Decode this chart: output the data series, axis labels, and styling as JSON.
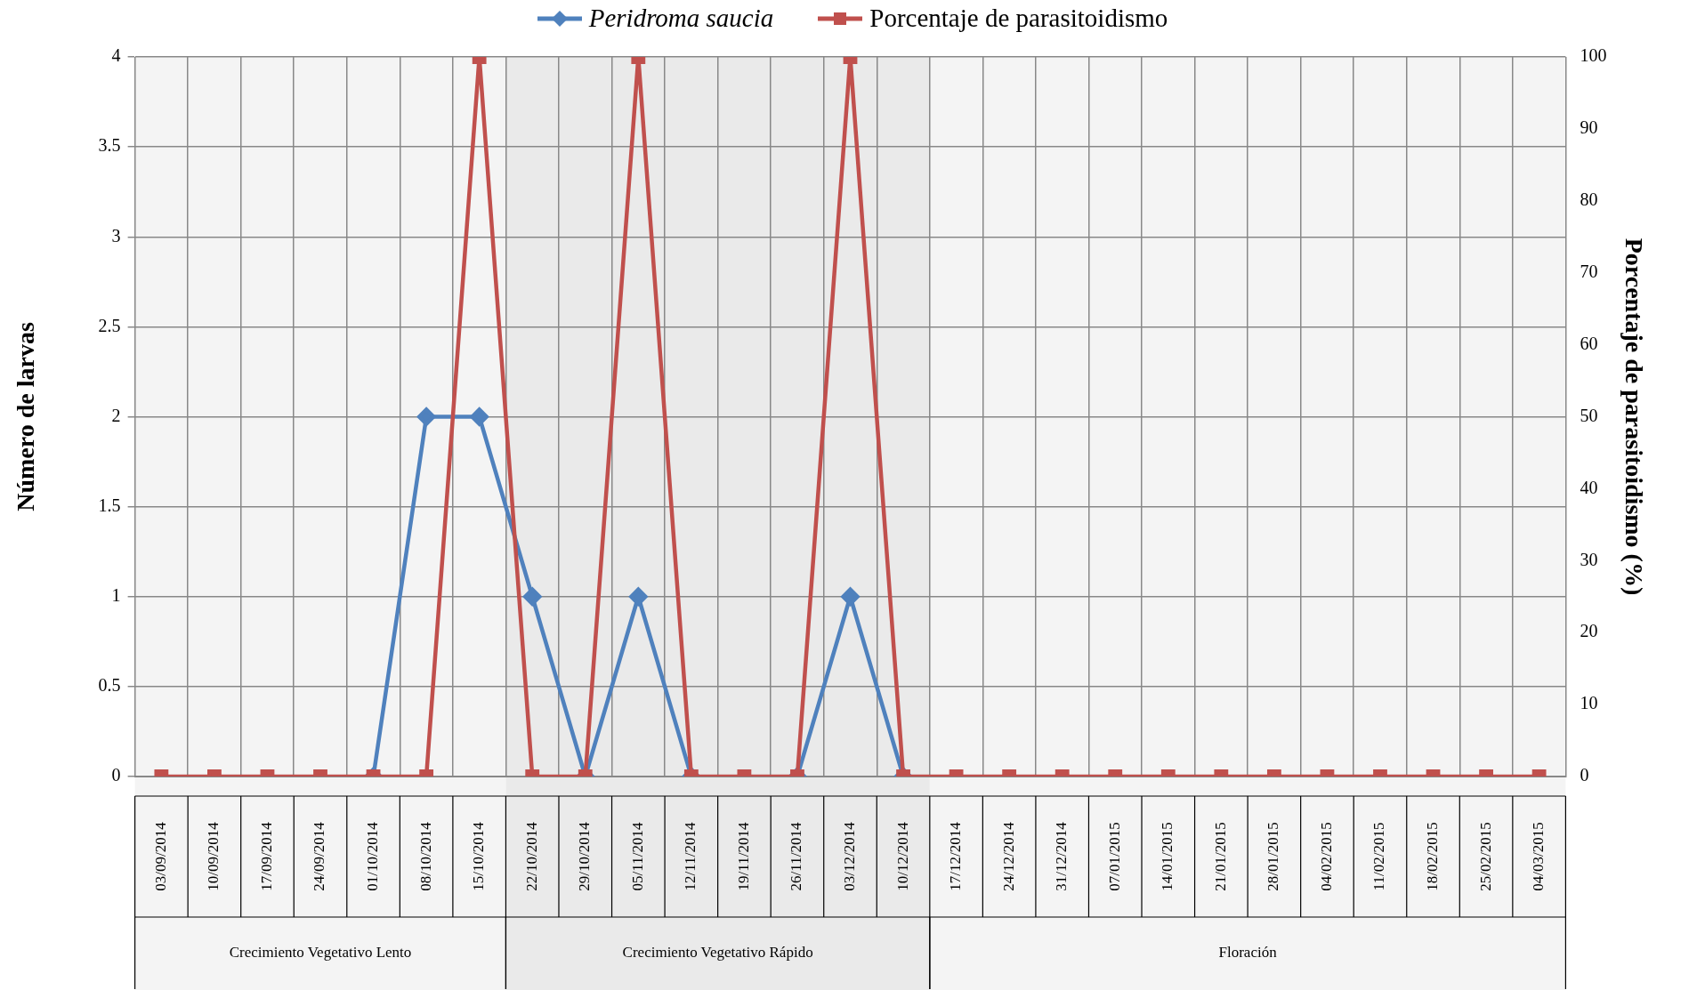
{
  "chart_data": {
    "type": "line",
    "ylabel": "Número de larvas",
    "y2label": "Porcentaje de parasitoidismo (%)",
    "categories": [
      "03/09/2014",
      "10/09/2014",
      "17/09/2014",
      "24/09/2014",
      "01/10/2014",
      "08/10/2014",
      "15/10/2014",
      "22/10/2014",
      "29/10/2014",
      "05/11/2014",
      "12/11/2014",
      "19/11/2014",
      "26/11/2014",
      "03/12/2014",
      "10/12/2014",
      "17/12/2014",
      "24/12/2014",
      "31/12/2014",
      "07/01/2015",
      "14/01/2015",
      "21/01/2015",
      "28/01/2015",
      "04/02/2015",
      "11/02/2015",
      "18/02/2015",
      "25/02/2015",
      "04/03/2015"
    ],
    "series": [
      {
        "name": "Peridroma saucia",
        "color": "#4f81bd",
        "marker": "diamond",
        "values": [
          null,
          null,
          null,
          null,
          0,
          2,
          2,
          1,
          0,
          1,
          0,
          null,
          0,
          1,
          0,
          null,
          null,
          null,
          null,
          null,
          null,
          null,
          null,
          null,
          null,
          null,
          null
        ]
      },
      {
        "name": "Porcentaje de parasitoidismo",
        "color": "#c0504d",
        "marker": "square",
        "axis": "y2",
        "values": [
          0,
          0,
          0,
          0,
          0,
          0,
          100,
          0,
          0,
          100,
          0,
          0,
          0,
          100,
          0,
          0,
          0,
          0,
          0,
          0,
          0,
          0,
          0,
          0,
          0,
          0,
          0
        ]
      }
    ],
    "ylim": [
      0,
      4
    ],
    "yticks": [
      0,
      0.5,
      1,
      1.5,
      2,
      2.5,
      3,
      3.5,
      4
    ],
    "y2lim": [
      0,
      100
    ],
    "y2ticks": [
      0,
      10,
      20,
      30,
      40,
      50,
      60,
      70,
      80,
      90,
      100
    ],
    "bands": [
      {
        "axis": "x",
        "from": "03/09/2014",
        "to": "15/10/2014",
        "label": "Crecimiento Vegetativo Lento",
        "color": "#f4f4f4"
      },
      {
        "axis": "x",
        "from": "22/10/2014",
        "to": "10/12/2014",
        "label": "Crecimiento Vegetativo Rápido",
        "color": "#eaeaea"
      },
      {
        "axis": "x",
        "from": "17/12/2014",
        "to": "04/03/2015",
        "label": "Floración",
        "color": "#f4f4f4"
      }
    ],
    "grid": true,
    "legend": "top",
    "line_style": "solid"
  }
}
